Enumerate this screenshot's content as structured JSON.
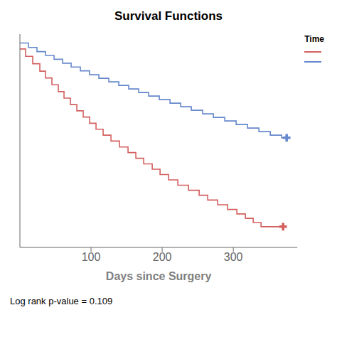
{
  "chart_data": {
    "type": "line",
    "title": "Survival Functions",
    "xlabel": "Days since Surgery",
    "annotations": [
      "Log rank p-value = 0.109"
    ],
    "legend_title": "Time",
    "legend": "upper right",
    "xlim": [
      0,
      390
    ],
    "ylim": [
      0.3,
      1.02
    ],
    "xticks": [
      100,
      200,
      300
    ],
    "tick_labels": "x",
    "series": [
      {
        "color": "#d45f5f",
        "x": [
          0,
          8,
          8,
          18,
          18,
          28,
          28,
          36,
          36,
          45,
          45,
          54,
          54,
          62,
          62,
          71,
          71,
          80,
          80,
          89,
          89,
          98,
          98,
          107,
          107,
          117,
          117,
          128,
          128,
          140,
          140,
          152,
          152,
          163,
          163,
          174,
          174,
          186,
          186,
          197,
          197,
          209,
          209,
          222,
          222,
          237,
          237,
          252,
          252,
          264,
          264,
          278,
          278,
          292,
          292,
          305,
          305,
          317,
          317,
          328,
          328,
          339,
          339,
          350,
          350,
          362,
          362,
          370
        ],
        "values": [
          0.97,
          0.97,
          0.945,
          0.945,
          0.92,
          0.92,
          0.895,
          0.895,
          0.872,
          0.872,
          0.849,
          0.849,
          0.826,
          0.826,
          0.804,
          0.804,
          0.782,
          0.782,
          0.761,
          0.761,
          0.74,
          0.74,
          0.719,
          0.719,
          0.699,
          0.699,
          0.679,
          0.679,
          0.659,
          0.659,
          0.639,
          0.639,
          0.62,
          0.62,
          0.601,
          0.601,
          0.582,
          0.582,
          0.564,
          0.564,
          0.546,
          0.546,
          0.528,
          0.528,
          0.51,
          0.51,
          0.493,
          0.493,
          0.476,
          0.476,
          0.46,
          0.46,
          0.444,
          0.444,
          0.428,
          0.428,
          0.413,
          0.413,
          0.398,
          0.398,
          0.384,
          0.384,
          0.37,
          0.37,
          0.37,
          0.37,
          0.37,
          0.37
        ]
      },
      {
        "color": "#6688cc",
        "x": [
          0,
          12,
          12,
          24,
          24,
          36,
          36,
          48,
          48,
          60,
          60,
          72,
          72,
          85,
          85,
          98,
          98,
          111,
          111,
          125,
          125,
          139,
          139,
          153,
          153,
          167,
          167,
          181,
          181,
          196,
          196,
          211,
          211,
          226,
          226,
          241,
          241,
          257,
          257,
          272,
          272,
          288,
          288,
          304,
          304,
          320,
          320,
          336,
          336,
          352,
          352,
          368,
          368,
          375
        ],
        "values": [
          0.99,
          0.99,
          0.975,
          0.975,
          0.961,
          0.961,
          0.948,
          0.948,
          0.935,
          0.935,
          0.922,
          0.922,
          0.909,
          0.909,
          0.896,
          0.896,
          0.883,
          0.883,
          0.871,
          0.871,
          0.859,
          0.859,
          0.847,
          0.847,
          0.835,
          0.835,
          0.823,
          0.823,
          0.811,
          0.811,
          0.799,
          0.799,
          0.787,
          0.787,
          0.775,
          0.775,
          0.763,
          0.763,
          0.751,
          0.751,
          0.739,
          0.739,
          0.727,
          0.727,
          0.715,
          0.715,
          0.703,
          0.703,
          0.691,
          0.691,
          0.679,
          0.679,
          0.67,
          0.67
        ]
      }
    ]
  }
}
